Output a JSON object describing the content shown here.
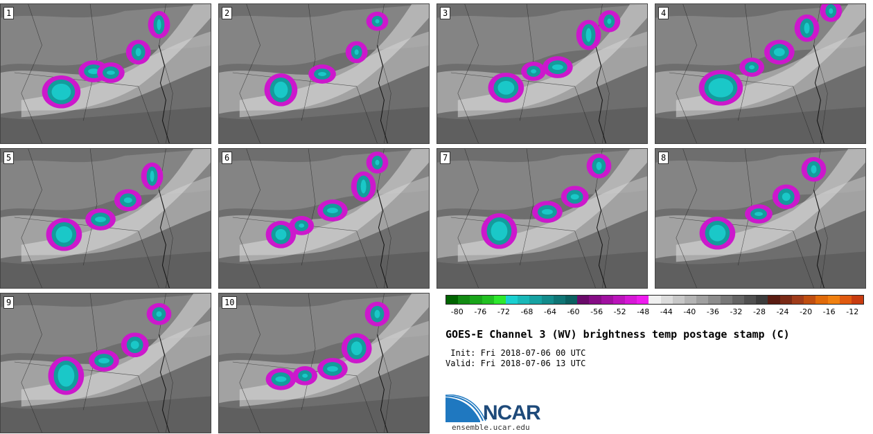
{
  "panels": [
    {
      "label": "1"
    },
    {
      "label": "2"
    },
    {
      "label": "3"
    },
    {
      "label": "4"
    },
    {
      "label": "5"
    },
    {
      "label": "6"
    },
    {
      "label": "7"
    },
    {
      "label": "8"
    },
    {
      "label": "9"
    },
    {
      "label": "10"
    }
  ],
  "colorbar": {
    "colors": [
      "#006400",
      "#138b13",
      "#1aa51a",
      "#22c022",
      "#2ee82e",
      "#1ad0d0",
      "#19b8b8",
      "#16a2a2",
      "#138c8c",
      "#0f7575",
      "#0b6060",
      "#6a0a6a",
      "#850c85",
      "#a010a0",
      "#bb14bb",
      "#d618d6",
      "#ee1cee",
      "#f0f0f0",
      "#dcdcdc",
      "#c8c8c8",
      "#b4b4b4",
      "#a0a0a0",
      "#8c8c8c",
      "#787878",
      "#646464",
      "#505050",
      "#3c3c3c",
      "#5a1c12",
      "#7a2a16",
      "#a03c1a",
      "#c04e10",
      "#e06a0a",
      "#f08010",
      "#e05a10",
      "#c83c10"
    ],
    "ticks": [
      "-80",
      "-76",
      "-72",
      "-68",
      "-64",
      "-60",
      "-56",
      "-52",
      "-48",
      "-44",
      "-40",
      "-36",
      "-32",
      "-28",
      "-24",
      "-20",
      "-16",
      "-12"
    ],
    "min": -82,
    "max": -10
  },
  "title": "GOES-E Channel 3 (WV) brightness temp postage stamp (C)",
  "init_line": " Init: Fri 2018-07-06 00 UTC",
  "valid_line": "Valid: Fri 2018-07-06 13 UTC",
  "logo": {
    "text": "NCAR",
    "url": "ensemble.ucar.edu"
  }
}
